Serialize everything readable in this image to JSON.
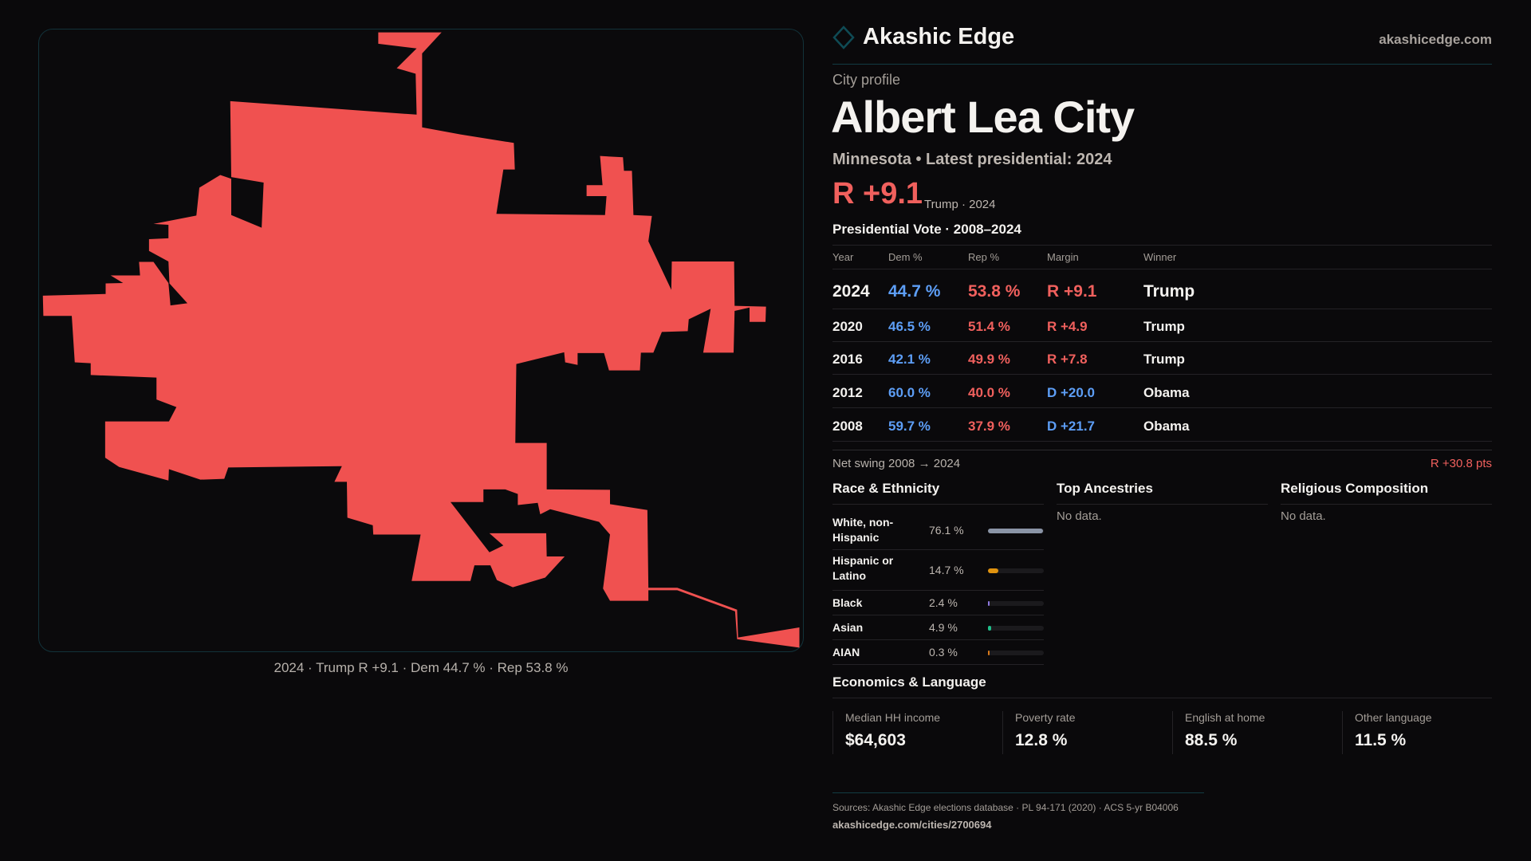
{
  "brand": {
    "name": "Akashic Edge",
    "site": "akashicedge.com",
    "logo_icon": "diamond-outline-icon"
  },
  "map": {
    "fill": "#f05150",
    "caption": "2024 · Trump R +9.1 · Dem 44.7 % · Rep 53.8 %"
  },
  "profile": {
    "kicker": "City profile",
    "title": "Albert Lea City",
    "subtitle": "Minnesota • Latest presidential: 2024",
    "margin": "R +9.1",
    "margin_sub": "Trump · 2024"
  },
  "colors": {
    "dem": "#5d9ef6",
    "rep": "#f0605d",
    "background": "#0a090b"
  },
  "votes": {
    "title": "Presidential Vote · 2008–2024",
    "headers": [
      "Year",
      "Dem %",
      "Rep %",
      "Margin",
      "Winner"
    ],
    "rows": [
      {
        "year": "2024",
        "dem": "44.7 %",
        "rep": "53.8 %",
        "margin": "R +9.1",
        "winner": "Trump",
        "party": "rep"
      },
      {
        "year": "2020",
        "dem": "46.5 %",
        "rep": "51.4 %",
        "margin": "R +4.9",
        "winner": "Trump",
        "party": "rep"
      },
      {
        "year": "2016",
        "dem": "42.1 %",
        "rep": "49.9 %",
        "margin": "R +7.8",
        "winner": "Trump",
        "party": "rep"
      },
      {
        "year": "2012",
        "dem": "60.0 %",
        "rep": "40.0 %",
        "margin": "D +20.0",
        "winner": "Obama",
        "party": "dem"
      },
      {
        "year": "2008",
        "dem": "59.7 %",
        "rep": "37.9 %",
        "margin": "D +21.7",
        "winner": "Obama",
        "party": "dem"
      }
    ],
    "swing_label": "Net swing 2008 → 2024",
    "swing_value": "R +30.8 pts"
  },
  "race": {
    "title": "Race & Ethnicity",
    "items": [
      {
        "label": "White, non-Hispanic",
        "pct": "76.1 %",
        "value": 76.1,
        "color": "#8a94a6"
      },
      {
        "label": "Hispanic or Latino",
        "pct": "14.7 %",
        "value": 14.7,
        "color": "#e0930f"
      },
      {
        "label": "Black",
        "pct": "2.4 %",
        "value": 2.4,
        "color": "#8f7ae0"
      },
      {
        "label": "Asian",
        "pct": "4.9 %",
        "value": 4.9,
        "color": "#1fbf8a"
      },
      {
        "label": "AIAN",
        "pct": "0.3 %",
        "value": 0.3,
        "color": "#d97a1a"
      }
    ]
  },
  "ancestries": {
    "title": "Top Ancestries",
    "empty": "No data."
  },
  "religion": {
    "title": "Religious Composition",
    "empty": "No data."
  },
  "economics": {
    "title": "Economics & Language",
    "cards": [
      {
        "label": "Median HH income",
        "value": "$64,603"
      },
      {
        "label": "Poverty rate",
        "value": "12.8 %"
      },
      {
        "label": "English at home",
        "value": "88.5 %"
      },
      {
        "label": "Other language",
        "value": "11.5 %"
      }
    ]
  },
  "footer": {
    "sources": "Sources: Akashic Edge elections database · PL 94-171 (2020) · ACS 5-yr B04006",
    "url": "akashicedge.com/cities/2700694"
  }
}
